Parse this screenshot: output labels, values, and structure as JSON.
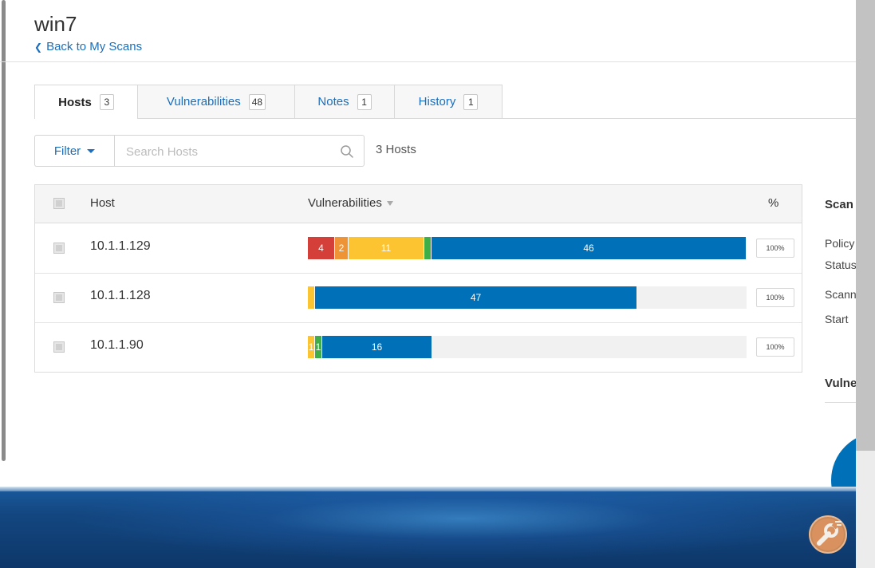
{
  "page": {
    "title": "win7",
    "back_link": "Back to My Scans"
  },
  "tabs": [
    {
      "label": "Hosts",
      "count": "3",
      "active": true
    },
    {
      "label": "Vulnerabilities",
      "count": "48",
      "active": false
    },
    {
      "label": "Notes",
      "count": "1",
      "active": false
    },
    {
      "label": "History",
      "count": "1",
      "active": false
    }
  ],
  "toolbar": {
    "filter_label": "Filter",
    "search_placeholder": "Search Hosts",
    "host_count": "3 Hosts"
  },
  "table": {
    "columns": {
      "host": "Host",
      "vulnerabilities": "Vulnerabilities",
      "percent": "%"
    },
    "rows": [
      {
        "host": "10.1.1.129",
        "percent": "100%",
        "segments": [
          {
            "severity": "critical",
            "count": 4,
            "label": "4"
          },
          {
            "severity": "high",
            "count": 2,
            "label": "2"
          },
          {
            "severity": "medium",
            "count": 11,
            "label": "11"
          },
          {
            "severity": "low",
            "count": 1,
            "label": ""
          },
          {
            "severity": "info",
            "count": 46,
            "label": "46"
          }
        ]
      },
      {
        "host": "10.1.1.128",
        "percent": "100%",
        "segments": [
          {
            "severity": "medium",
            "count": 1,
            "label": ""
          },
          {
            "severity": "info",
            "count": 47,
            "label": "47"
          }
        ]
      },
      {
        "host": "10.1.1.90",
        "percent": "100%",
        "segments": [
          {
            "severity": "medium",
            "count": 1,
            "label": "1"
          },
          {
            "severity": "low",
            "count": 1,
            "label": "1"
          },
          {
            "severity": "info",
            "count": 16,
            "label": "16"
          }
        ]
      }
    ],
    "bar_scale_max": 64
  },
  "details": {
    "title": "Scan",
    "labels": [
      "Policy",
      "Status",
      "Scanner",
      "Start"
    ],
    "vuln_heading": "Vulnerabilities"
  },
  "colors": {
    "critical": "#d43f3a",
    "high": "#ee9336",
    "medium": "#fdc431",
    "low": "#3fae49",
    "info": "#0071b9",
    "link": "#1a6ebd"
  },
  "icons": {
    "back": "chevron-left-icon",
    "search": "magnifier-icon",
    "sort": "caret-down-icon",
    "tools": "wrench-icon"
  }
}
